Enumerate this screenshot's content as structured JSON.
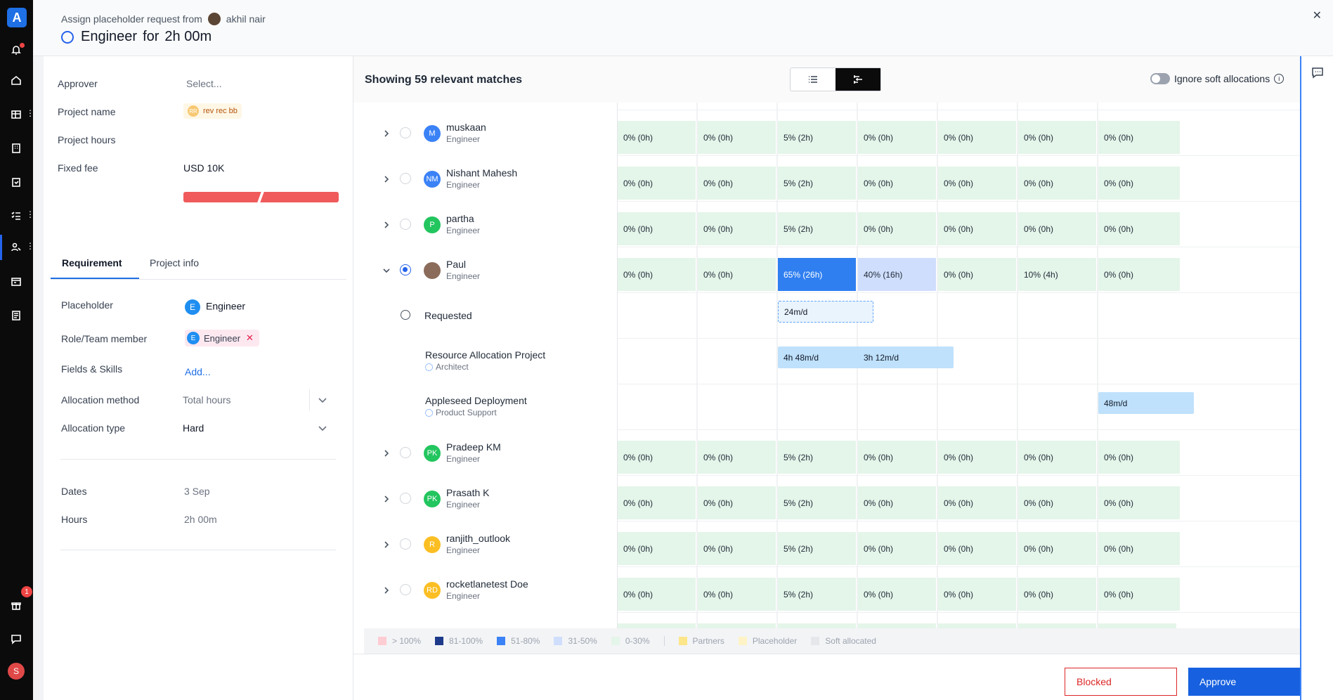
{
  "colors": {
    "accent": "#1f6fe5",
    "approve": "#1761e0",
    "blocked": "#dc2626",
    "allocation_green": "#e4f5e9",
    "allocation_65": "#2f7ff0",
    "allocation_40": "#cfdefc"
  },
  "header": {
    "subtitle_prefix": "Assign placeholder request from",
    "requester": "akhil nair",
    "title_role": "Engineer",
    "title_for": "for",
    "title_hours": "2h 00m"
  },
  "rail": {
    "notification_badge": "1",
    "user_initial": "S"
  },
  "form": {
    "approver_label": "Approver",
    "approver_placeholder": "Select...",
    "project_name_label": "Project name",
    "project_initials": "RR",
    "project_name": "rev rec bb",
    "project_hours_label": "Project hours",
    "fixed_fee_label": "Fixed fee",
    "fixed_fee": "USD 10K"
  },
  "tabs": {
    "requirement": "Requirement",
    "project_info": "Project info"
  },
  "requirement": {
    "placeholder_label": "Placeholder",
    "placeholder_initial": "E",
    "placeholder_value": "Engineer",
    "role_label": "Role/Team member",
    "role_initial": "E",
    "role_value": "Engineer",
    "skills_label": "Fields & Skills",
    "skills_add": "Add...",
    "alloc_method_label": "Allocation method",
    "alloc_method_value": "Total hours",
    "alloc_type_label": "Allocation type",
    "alloc_type_value": "Hard",
    "dates_label": "Dates",
    "dates_value": "3 Sep",
    "hours_label": "Hours",
    "hours_value": "2h 00m"
  },
  "matches": {
    "title": "Showing 59 relevant matches",
    "ignore_soft": "Ignore soft allocations"
  },
  "rows": [
    {
      "name": "muskaan",
      "role": "Engineer",
      "initials": "M",
      "color": "#3b82f6",
      "cells": [
        "0% (0h)",
        "0% (0h)",
        "5% (2h)",
        "0% (0h)",
        "0% (0h)",
        "0% (0h)",
        "0% (0h)"
      ]
    },
    {
      "name": "Nishant Mahesh",
      "role": "Engineer",
      "initials": "NM",
      "color": "#3b82f6",
      "cells": [
        "0% (0h)",
        "0% (0h)",
        "5% (2h)",
        "0% (0h)",
        "0% (0h)",
        "0% (0h)",
        "0% (0h)"
      ]
    },
    {
      "name": "partha",
      "role": "Engineer",
      "initials": "P",
      "color": "#22c55e",
      "cells": [
        "0% (0h)",
        "0% (0h)",
        "5% (2h)",
        "0% (0h)",
        "0% (0h)",
        "0% (0h)",
        "0% (0h)"
      ]
    },
    {
      "name": "Paul",
      "role": "Engineer",
      "initials": "",
      "color": "#8b6b5a",
      "cells": [
        "0% (0h)",
        "0% (0h)",
        "65% (26h)",
        "40% (16h)",
        "0% (0h)",
        "10% (4h)",
        "0% (0h)"
      ]
    },
    {
      "name": "Pradeep KM",
      "role": "Engineer",
      "initials": "PK",
      "color": "#22c55e",
      "cells": [
        "0% (0h)",
        "0% (0h)",
        "5% (2h)",
        "0% (0h)",
        "0% (0h)",
        "0% (0h)",
        "0% (0h)"
      ]
    },
    {
      "name": "Prasath K",
      "role": "Engineer",
      "initials": "PK",
      "color": "#22c55e",
      "cells": [
        "0% (0h)",
        "0% (0h)",
        "5% (2h)",
        "0% (0h)",
        "0% (0h)",
        "0% (0h)",
        "0% (0h)"
      ]
    },
    {
      "name": "ranjith_outlook",
      "role": "Engineer",
      "initials": "R",
      "color": "#fbbf24",
      "cells": [
        "0% (0h)",
        "0% (0h)",
        "5% (2h)",
        "0% (0h)",
        "0% (0h)",
        "0% (0h)",
        "0% (0h)"
      ]
    },
    {
      "name": "rocketlanetest Doe",
      "role": "Engineer",
      "initials": "RD",
      "color": "#fbbf24",
      "cells": [
        "0% (0h)",
        "0% (0h)",
        "5% (2h)",
        "0% (0h)",
        "0% (0h)",
        "0% (0h)",
        "0% (0h)"
      ]
    }
  ],
  "paul_details": {
    "requested_label": "Requested",
    "requested_block": "24m/d",
    "project1": "Resource Allocation Project",
    "project1_role": "Architect",
    "project1_blocks": [
      "4h 48m/d",
      "3h 12m/d"
    ],
    "project2": "Appleseed Deployment",
    "project2_role": "Product Support",
    "project2_block": "48m/d"
  },
  "legend": [
    {
      "label": "> 100%",
      "color": "#fecdd3"
    },
    {
      "label": "81-100%",
      "color": "#1e3a8a"
    },
    {
      "label": "51-80%",
      "color": "#3b82f6"
    },
    {
      "label": "31-50%",
      "color": "#cfdefc"
    },
    {
      "label": "0-30%",
      "color": "#e4f5e9"
    },
    {
      "label": "Partners",
      "color": "#fde68a"
    },
    {
      "label": "Placeholder",
      "color": "#fef3c7"
    },
    {
      "label": "Soft allocated",
      "color": "#e5e7eb"
    }
  ],
  "footer": {
    "blocked": "Blocked",
    "approve": "Approve"
  }
}
